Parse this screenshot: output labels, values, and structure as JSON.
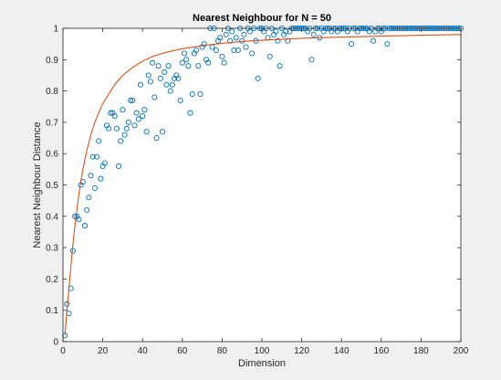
{
  "window": {
    "background": "#f0f0f0"
  },
  "chart_data": {
    "type": "scatter",
    "title": "Nearest Neighbour for N = 50",
    "xlabel": "Dimension",
    "ylabel": "Nearest Neighbour Distance",
    "xlim": [
      0,
      200
    ],
    "ylim": [
      0,
      1
    ],
    "xticks": [
      0,
      20,
      40,
      60,
      80,
      100,
      120,
      140,
      160,
      180,
      200
    ],
    "yticks": [
      0,
      0.1,
      0.2,
      0.3,
      0.4,
      0.5,
      0.6,
      0.7,
      0.8,
      0.9,
      1
    ],
    "ytick_labels": [
      "0",
      "0.1",
      "0.2",
      "0.3",
      "0.4",
      "0.5",
      "0.6",
      "0.7",
      "0.8",
      "0.9",
      "1"
    ],
    "grid": false,
    "legend": "none",
    "series": [
      {
        "kind": "scatter",
        "marker": "circle-open",
        "color": "#0072bd",
        "points": [
          [
            1,
            0.02
          ],
          [
            2,
            0.12
          ],
          [
            3,
            0.09
          ],
          [
            4,
            0.17
          ],
          [
            5,
            0.29
          ],
          [
            6,
            0.4
          ],
          [
            7,
            0.4
          ],
          [
            8,
            0.39
          ],
          [
            9,
            0.5
          ],
          [
            10,
            0.51
          ],
          [
            11,
            0.37
          ],
          [
            12,
            0.42
          ],
          [
            13,
            0.46
          ],
          [
            14,
            0.53
          ],
          [
            15,
            0.59
          ],
          [
            16,
            0.49
          ],
          [
            17,
            0.59
          ],
          [
            18,
            0.64
          ],
          [
            19,
            0.52
          ],
          [
            20,
            0.56
          ],
          [
            21,
            0.57
          ],
          [
            22,
            0.69
          ],
          [
            23,
            0.68
          ],
          [
            24,
            0.73
          ],
          [
            25,
            0.73
          ],
          [
            26,
            0.72
          ],
          [
            27,
            0.68
          ],
          [
            28,
            0.56
          ],
          [
            29,
            0.64
          ],
          [
            30,
            0.74
          ],
          [
            31,
            0.66
          ],
          [
            32,
            0.68
          ],
          [
            33,
            0.7
          ],
          [
            34,
            0.77
          ],
          [
            35,
            0.77
          ],
          [
            36,
            0.69
          ],
          [
            37,
            0.73
          ],
          [
            38,
            0.71
          ],
          [
            39,
            0.82
          ],
          [
            40,
            0.72
          ],
          [
            41,
            0.74
          ],
          [
            42,
            0.67
          ],
          [
            43,
            0.85
          ],
          [
            44,
            0.83
          ],
          [
            45,
            0.89
          ],
          [
            46,
            0.78
          ],
          [
            47,
            0.65
          ],
          [
            48,
            0.88
          ],
          [
            49,
            0.84
          ],
          [
            50,
            0.67
          ],
          [
            51,
            0.86
          ],
          [
            52,
            0.82
          ],
          [
            53,
            0.88
          ],
          [
            54,
            0.8
          ],
          [
            55,
            0.82
          ],
          [
            56,
            0.84
          ],
          [
            57,
            0.85
          ],
          [
            58,
            0.84
          ],
          [
            59,
            0.77
          ],
          [
            60,
            0.89
          ],
          [
            61,
            0.92
          ],
          [
            62,
            0.9
          ],
          [
            63,
            0.88
          ],
          [
            64,
            0.73
          ],
          [
            65,
            0.79
          ],
          [
            66,
            0.92
          ],
          [
            67,
            0.93
          ],
          [
            68,
            0.88
          ],
          [
            69,
            0.79
          ],
          [
            70,
            0.94
          ],
          [
            71,
            0.95
          ],
          [
            72,
            0.9
          ],
          [
            73,
            0.89
          ],
          [
            74,
            1.0
          ],
          [
            75,
            0.94
          ],
          [
            76,
            1.0
          ],
          [
            77,
            0.93
          ],
          [
            78,
            0.96
          ],
          [
            79,
            0.97
          ],
          [
            80,
            0.91
          ],
          [
            81,
            0.89
          ],
          [
            82,
            0.98
          ],
          [
            83,
            1.0
          ],
          [
            84,
            0.96
          ],
          [
            85,
            0.99
          ],
          [
            86,
            0.93
          ],
          [
            87,
            0.97
          ],
          [
            88,
            0.93
          ],
          [
            89,
            1.0
          ],
          [
            90,
            0.96
          ],
          [
            91,
            0.98
          ],
          [
            92,
            0.94
          ],
          [
            93,
            1.0
          ],
          [
            94,
            0.99
          ],
          [
            95,
            0.92
          ],
          [
            96,
            1.0
          ],
          [
            97,
            0.96
          ],
          [
            98,
            0.84
          ],
          [
            99,
            1.0
          ],
          [
            100,
            1.0
          ],
          [
            101,
            0.99
          ],
          [
            102,
            1.0
          ],
          [
            103,
            0.97
          ],
          [
            104,
            0.91
          ],
          [
            105,
            1.0
          ],
          [
            106,
            0.98
          ],
          [
            107,
            0.99
          ],
          [
            108,
            0.96
          ],
          [
            109,
            0.88
          ],
          [
            110,
            1.0
          ],
          [
            111,
            0.98
          ],
          [
            112,
            0.99
          ],
          [
            113,
            0.96
          ],
          [
            114,
            0.99
          ],
          [
            115,
            1.0
          ],
          [
            116,
            1.0
          ],
          [
            117,
            1.0
          ],
          [
            118,
            1.0
          ],
          [
            119,
            1.0
          ],
          [
            120,
            1.0
          ],
          [
            121,
            1.0
          ],
          [
            122,
            1.0
          ],
          [
            123,
            0.99
          ],
          [
            124,
            1.0
          ],
          [
            125,
            0.9
          ],
          [
            126,
            0.98
          ],
          [
            127,
            1.0
          ],
          [
            128,
            1.0
          ],
          [
            129,
            0.97
          ],
          [
            130,
            1.0
          ],
          [
            131,
            0.99
          ],
          [
            132,
            1.0
          ],
          [
            133,
            1.0
          ],
          [
            134,
            1.0
          ],
          [
            135,
            0.99
          ],
          [
            136,
            1.0
          ],
          [
            137,
            1.0
          ],
          [
            138,
            0.99
          ],
          [
            139,
            1.0
          ],
          [
            140,
            1.0
          ],
          [
            141,
            1.0
          ],
          [
            142,
            1.0
          ],
          [
            143,
            0.99
          ],
          [
            144,
            1.0
          ],
          [
            145,
            0.95
          ],
          [
            146,
            1.0
          ],
          [
            147,
            1.0
          ],
          [
            148,
            0.99
          ],
          [
            149,
            1.0
          ],
          [
            150,
            1.0
          ],
          [
            151,
            1.0
          ],
          [
            152,
            1.0
          ],
          [
            153,
            1.0
          ],
          [
            154,
            0.99
          ],
          [
            155,
            1.0
          ],
          [
            156,
            0.96
          ],
          [
            157,
            0.99
          ],
          [
            158,
            1.0
          ],
          [
            159,
            1.0
          ],
          [
            160,
            0.99
          ],
          [
            161,
            1.0
          ],
          [
            162,
            1.0
          ],
          [
            163,
            0.95
          ],
          [
            164,
            1.0
          ],
          [
            165,
            1.0
          ],
          [
            166,
            1.0
          ],
          [
            167,
            1.0
          ],
          [
            168,
            1.0
          ],
          [
            169,
            1.0
          ],
          [
            170,
            1.0
          ],
          [
            171,
            1.0
          ],
          [
            172,
            1.0
          ],
          [
            173,
            1.0
          ],
          [
            174,
            1.0
          ],
          [
            175,
            1.0
          ],
          [
            176,
            1.0
          ],
          [
            177,
            1.0
          ],
          [
            178,
            1.0
          ],
          [
            179,
            1.0
          ],
          [
            180,
            1.0
          ],
          [
            181,
            1.0
          ],
          [
            182,
            1.0
          ],
          [
            183,
            1.0
          ],
          [
            184,
            1.0
          ],
          [
            185,
            1.0
          ],
          [
            186,
            1.0
          ],
          [
            187,
            1.0
          ],
          [
            188,
            1.0
          ],
          [
            189,
            1.0
          ],
          [
            190,
            1.0
          ],
          [
            191,
            1.0
          ],
          [
            192,
            1.0
          ],
          [
            193,
            1.0
          ],
          [
            194,
            1.0
          ],
          [
            195,
            1.0
          ],
          [
            196,
            1.0
          ],
          [
            197,
            1.0
          ],
          [
            198,
            1.0
          ],
          [
            199,
            1.0
          ],
          [
            200,
            1.0
          ]
        ]
      },
      {
        "kind": "line",
        "color": "#d95319",
        "points": [
          [
            1,
            0.02
          ],
          [
            2,
            0.1
          ],
          [
            3,
            0.17
          ],
          [
            4,
            0.24
          ],
          [
            5,
            0.31
          ],
          [
            6,
            0.37
          ],
          [
            7,
            0.42
          ],
          [
            8,
            0.47
          ],
          [
            9,
            0.51
          ],
          [
            10,
            0.55
          ],
          [
            12,
            0.61
          ],
          [
            14,
            0.66
          ],
          [
            16,
            0.7
          ],
          [
            18,
            0.73
          ],
          [
            20,
            0.76
          ],
          [
            22,
            0.78
          ],
          [
            24,
            0.8
          ],
          [
            26,
            0.82
          ],
          [
            28,
            0.835
          ],
          [
            30,
            0.85
          ],
          [
            35,
            0.875
          ],
          [
            40,
            0.895
          ],
          [
            45,
            0.91
          ],
          [
            50,
            0.92
          ],
          [
            55,
            0.928
          ],
          [
            60,
            0.935
          ],
          [
            70,
            0.945
          ],
          [
            80,
            0.952
          ],
          [
            90,
            0.958
          ],
          [
            100,
            0.962
          ],
          [
            120,
            0.968
          ],
          [
            140,
            0.972
          ],
          [
            160,
            0.975
          ],
          [
            180,
            0.978
          ],
          [
            200,
            0.98
          ]
        ]
      }
    ]
  }
}
